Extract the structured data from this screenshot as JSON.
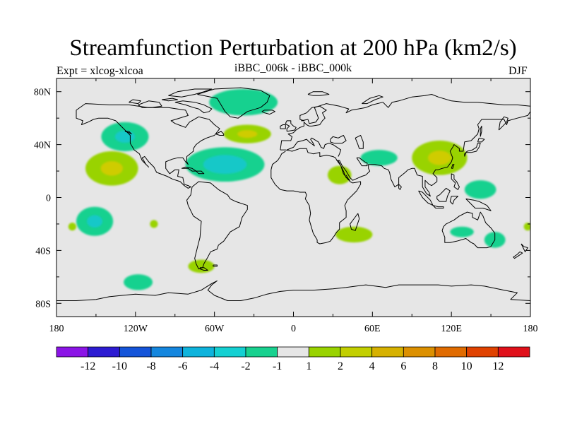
{
  "figure": {
    "title": "Streamfunction Perturbation at 200 hPa (km2/s)",
    "left_label": "Expt = xlcog-xlcoa",
    "center_label": "iBBC_006k - iBBC_000k",
    "right_label": "DJF"
  },
  "map_data": {
    "projection": "cylindrical-equidistant",
    "lon_range": [
      -180,
      180
    ],
    "lat_range": [
      -90,
      90
    ],
    "lon_ticks": [
      {
        "value": -180,
        "label": "180"
      },
      {
        "value": -120,
        "label": "120W"
      },
      {
        "value": -60,
        "label": "60W"
      },
      {
        "value": 0,
        "label": "0"
      },
      {
        "value": 60,
        "label": "60E"
      },
      {
        "value": 120,
        "label": "120E"
      },
      {
        "value": 180,
        "label": "180"
      }
    ],
    "lat_ticks": [
      {
        "value": 80,
        "label": "80N"
      },
      {
        "value": 40,
        "label": "40N"
      },
      {
        "value": 0,
        "label": "0"
      },
      {
        "value": -40,
        "label": "40S"
      },
      {
        "value": -80,
        "label": "80S"
      }
    ],
    "colors": {
      "background": "#e6e6e6",
      "neg1": "#18d18f",
      "neg2": "#18c8c8",
      "pos1": "#99d300",
      "pos2": "#cfcc00",
      "coast": "#000000"
    },
    "anomalies": [
      {
        "lon": -38,
        "lat": 72,
        "rlon": 26,
        "rlat": 10,
        "value": -1
      },
      {
        "lon": -128,
        "lat": 46,
        "rlon": 18,
        "rlat": 11,
        "value": -1.5
      },
      {
        "lon": -52,
        "lat": 25,
        "rlon": 30,
        "rlat": 13,
        "value": -2.2
      },
      {
        "lon": -35,
        "lat": 48,
        "rlon": 18,
        "rlat": 7,
        "value": 1.5
      },
      {
        "lon": -138,
        "lat": 22,
        "rlon": 20,
        "rlat": 13,
        "value": 1.5
      },
      {
        "lon": -151,
        "lat": -18,
        "rlon": 14,
        "rlat": 11,
        "value": -1.5
      },
      {
        "lon": -118,
        "lat": -64,
        "rlon": 11,
        "rlat": 6,
        "value": -1
      },
      {
        "lon": -70,
        "lat": -52,
        "rlon": 10,
        "rlat": 5,
        "value": 1
      },
      {
        "lon": 35,
        "lat": 17,
        "rlon": 9,
        "rlat": 7,
        "value": 1
      },
      {
        "lon": 65,
        "lat": 30,
        "rlon": 14,
        "rlat": 6,
        "value": -1
      },
      {
        "lon": 111,
        "lat": 30,
        "rlon": 21,
        "rlat": 13,
        "value": 1.8
      },
      {
        "lon": 46,
        "lat": -28,
        "rlon": 14,
        "rlat": 6,
        "value": 1
      },
      {
        "lon": 142,
        "lat": 6,
        "rlon": 12,
        "rlat": 7,
        "value": -1
      },
      {
        "lon": 128,
        "lat": -26,
        "rlon": 9,
        "rlat": 4,
        "value": -1
      },
      {
        "lon": 153,
        "lat": -32,
        "rlon": 8,
        "rlat": 6,
        "value": -1
      },
      {
        "lon": -168,
        "lat": -22,
        "rlon": 3,
        "rlat": 3,
        "value": 1
      },
      {
        "lon": -106,
        "lat": -20,
        "rlon": 3,
        "rlat": 3,
        "value": 1
      },
      {
        "lon": 178,
        "lat": -22,
        "rlon": 3,
        "rlat": 3,
        "value": 1
      }
    ]
  },
  "colorbar": {
    "colors": [
      "#8b14e6",
      "#2d1bd2",
      "#1454d9",
      "#1486de",
      "#0eb3dc",
      "#14d0d2",
      "#18d18f",
      "#e6e6e6",
      "#99d300",
      "#c2cf00",
      "#d6b100",
      "#dc9000",
      "#e06b00",
      "#e04200",
      "#e0101a"
    ],
    "labels": [
      "-12",
      "-10",
      "-8",
      "-6",
      "-4",
      "-2",
      "-1",
      "1",
      "2",
      "4",
      "6",
      "8",
      "10",
      "12"
    ]
  }
}
